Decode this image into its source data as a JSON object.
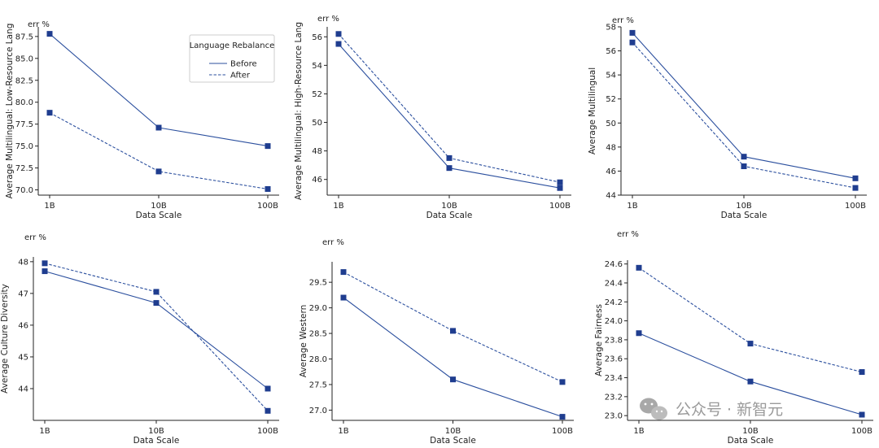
{
  "chart_data": [
    {
      "type": "line",
      "unit_label": "err %",
      "xlabel": "Data Scale",
      "ylabel": "Average Multilingual: Low-Resource Lang",
      "categories": [
        "1B",
        "10B",
        "100B"
      ],
      "ylim": [
        69.4,
        88.6
      ],
      "yticks": [
        70.0,
        72.5,
        75.0,
        77.5,
        80.0,
        82.5,
        85.0,
        87.5
      ],
      "ytick_labels": [
        "70.0",
        "72.5",
        "75.0",
        "77.5",
        "80.0",
        "82.5",
        "85.0",
        "87.5"
      ],
      "series": [
        {
          "name": "Before",
          "style": "solid",
          "values": [
            87.8,
            77.1,
            75.0
          ]
        },
        {
          "name": "After",
          "style": "dashed",
          "values": [
            78.8,
            72.1,
            70.1
          ]
        }
      ],
      "legend": {
        "title": "Language Rebalance",
        "placement": "top-right"
      }
    },
    {
      "type": "line",
      "unit_label": "err %",
      "xlabel": "Data Scale",
      "ylabel": "Average Multilingual: High-Resource Lang",
      "categories": [
        "1B",
        "10B",
        "100B"
      ],
      "ylim": [
        44.9,
        56.7
      ],
      "yticks": [
        46,
        48,
        50,
        52,
        54,
        56
      ],
      "ytick_labels": [
        "46",
        "48",
        "50",
        "52",
        "54",
        "56"
      ],
      "series": [
        {
          "name": "Before",
          "style": "solid",
          "values": [
            55.5,
            46.8,
            45.4
          ]
        },
        {
          "name": "After",
          "style": "dashed",
          "values": [
            56.2,
            47.5,
            45.8
          ]
        }
      ]
    },
    {
      "type": "line",
      "unit_label": "err %",
      "xlabel": "Data Scale",
      "ylabel": "Average Multilingual",
      "categories": [
        "1B",
        "10B",
        "100B"
      ],
      "ylim": [
        44.0,
        58.0
      ],
      "yticks": [
        44,
        46,
        48,
        50,
        52,
        54,
        56,
        58
      ],
      "ytick_labels": [
        "44",
        "46",
        "48",
        "50",
        "52",
        "54",
        "56",
        "58"
      ],
      "series": [
        {
          "name": "Before",
          "style": "solid",
          "values": [
            57.5,
            47.2,
            45.4
          ]
        },
        {
          "name": "After",
          "style": "dashed",
          "values": [
            56.7,
            46.4,
            44.6
          ]
        }
      ]
    },
    {
      "type": "line",
      "unit_label": "err %",
      "xlabel": "Data Scale",
      "ylabel": "Average Culture Diversity",
      "categories": [
        "1B",
        "10B",
        "100B"
      ],
      "ylim": [
        43.0,
        48.15
      ],
      "yticks": [
        44,
        45,
        46,
        47,
        48
      ],
      "ytick_labels": [
        "44",
        "45",
        "46",
        "47",
        "48"
      ],
      "series": [
        {
          "name": "Before",
          "style": "solid",
          "values": [
            47.7,
            46.7,
            44.0
          ]
        },
        {
          "name": "After",
          "style": "dashed",
          "values": [
            47.95,
            47.05,
            43.3
          ]
        }
      ]
    },
    {
      "type": "line",
      "unit_label": "err %",
      "xlabel": "Data Scale",
      "ylabel": "Average Western",
      "categories": [
        "1B",
        "10B",
        "100B"
      ],
      "ylim": [
        26.8,
        29.9
      ],
      "yticks": [
        27.0,
        27.5,
        28.0,
        28.5,
        29.0,
        29.5
      ],
      "ytick_labels": [
        "27.0",
        "27.5",
        "28.0",
        "28.5",
        "29.0",
        "29.5"
      ],
      "series": [
        {
          "name": "Before",
          "style": "solid",
          "values": [
            29.2,
            27.6,
            26.87
          ]
        },
        {
          "name": "After",
          "style": "dashed",
          "values": [
            29.7,
            28.55,
            27.55
          ]
        }
      ]
    },
    {
      "type": "line",
      "unit_label": "err %",
      "xlabel": "Data Scale",
      "ylabel": "Average Fairness",
      "categories": [
        "1B",
        "10B",
        "100B"
      ],
      "ylim": [
        22.95,
        24.64
      ],
      "yticks": [
        23.0,
        23.2,
        23.4,
        23.6,
        23.8,
        24.0,
        24.2,
        24.4,
        24.6
      ],
      "ytick_labels": [
        "23.0",
        "23.2",
        "23.4",
        "23.6",
        "23.8",
        "24.0",
        "24.2",
        "24.4",
        "24.6"
      ],
      "series": [
        {
          "name": "Before",
          "style": "solid",
          "values": [
            23.87,
            23.36,
            23.01
          ]
        },
        {
          "name": "After",
          "style": "dashed",
          "values": [
            24.56,
            23.76,
            23.46
          ]
        }
      ]
    }
  ],
  "watermark": {
    "text": "公众号 · 新智元"
  },
  "colors": {
    "line": "#2b4f9e",
    "marker": "#1f3d8f",
    "axis": "#222222"
  }
}
